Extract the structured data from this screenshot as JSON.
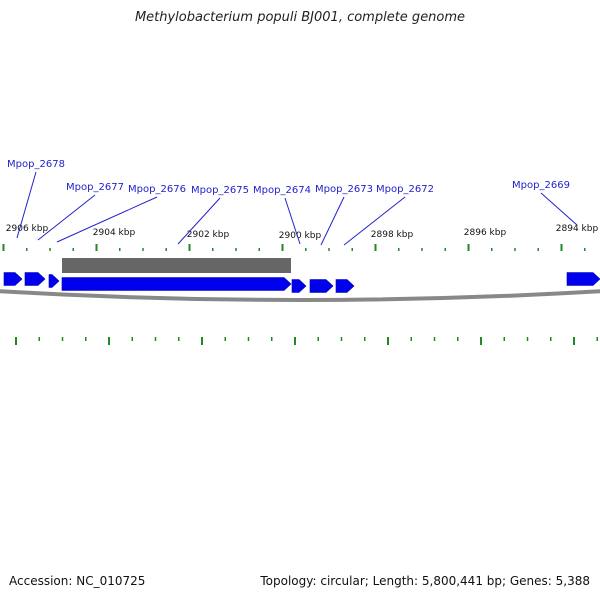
{
  "title": "Methylobacterium populi BJ001, complete genome",
  "footer": {
    "accession": "Accession: NC_010725",
    "summary": "Topology: circular; Length: 5,800,441 bp; Genes: 5,388"
  },
  "colors": {
    "gene": "#0000ee",
    "label": "#2222cc",
    "tick": "#228822",
    "backbone": "#888888",
    "feature_bar": "#666666"
  },
  "scale_labels": [
    {
      "label": "2906 kbp"
    },
    {
      "label": "2904 kbp"
    },
    {
      "label": "2902 kbp"
    },
    {
      "label": "2900 kbp"
    },
    {
      "label": "2898 kbp"
    },
    {
      "label": "2896 kbp"
    },
    {
      "label": "2894 kbp"
    }
  ],
  "gene_labels": [
    {
      "name": "Mpop_2678"
    },
    {
      "name": "Mpop_2677"
    },
    {
      "name": "Mpop_2676"
    },
    {
      "name": "Mpop_2675"
    },
    {
      "name": "Mpop_2674"
    },
    {
      "name": "Mpop_2673"
    },
    {
      "name": "Mpop_2672"
    },
    {
      "name": "Mpop_2669"
    }
  ]
}
